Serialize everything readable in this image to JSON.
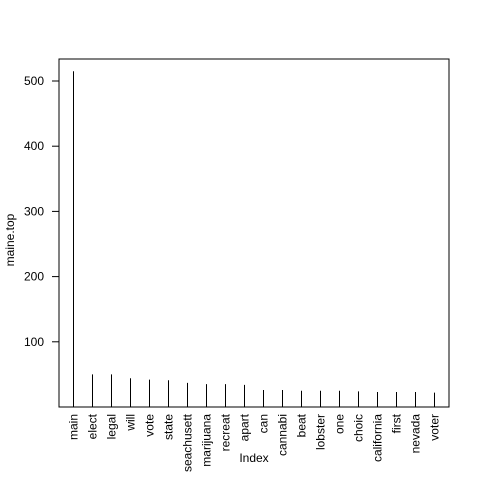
{
  "chart_data": {
    "type": "bar",
    "title": "",
    "xlabel": "Index",
    "ylabel": "maine.top",
    "categories": [
      "main",
      "elect",
      "legal",
      "will",
      "vote",
      "state",
      "seachusett",
      "marijuana",
      "recreat",
      "apart",
      "can",
      "cannabi",
      "beat",
      "lobster",
      "one",
      "choic",
      "california",
      "first",
      "nevada",
      "voter"
    ],
    "values": [
      515,
      50,
      50,
      44,
      42,
      41,
      37,
      35,
      35,
      34,
      26,
      26,
      25,
      25,
      25,
      24,
      23,
      23,
      23,
      22
    ],
    "ylim": [
      0,
      515
    ],
    "yticks": [
      100,
      200,
      300,
      400,
      500
    ],
    "grid": false
  }
}
